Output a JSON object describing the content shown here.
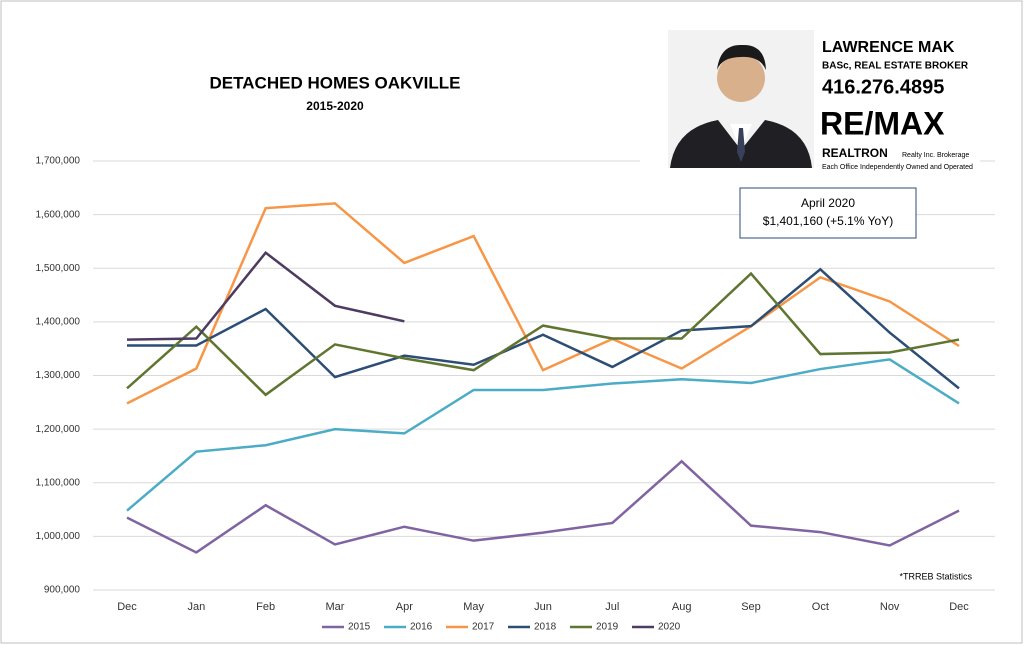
{
  "chart_data": {
    "type": "line",
    "title": "DETACHED HOMES OAKVILLE",
    "subtitle": "2015-2020",
    "categories": [
      "Dec",
      "Jan",
      "Feb",
      "Mar",
      "Apr",
      "May",
      "Jun",
      "Jul",
      "Aug",
      "Sep",
      "Oct",
      "Nov",
      "Dec"
    ],
    "series": [
      {
        "name": "2015",
        "color": "#8064a2",
        "values": [
          1035000,
          970000,
          1058000,
          985000,
          1018000,
          992000,
          1007000,
          1025000,
          1140000,
          1020000,
          1008000,
          983000,
          1048000
        ]
      },
      {
        "name": "2016",
        "color": "#4bacc6",
        "values": [
          1048000,
          1158000,
          1170000,
          1200000,
          1192000,
          1273000,
          1273000,
          1285000,
          1293000,
          1286000,
          1312000,
          1330000,
          1248000
        ]
      },
      {
        "name": "2017",
        "color": "#f79646",
        "values": [
          1248000,
          1313000,
          1612000,
          1621000,
          1510000,
          1560000,
          1310000,
          1368000,
          1313000,
          1392000,
          1483000,
          1438000,
          1355000
        ]
      },
      {
        "name": "2018",
        "color": "#2c4d75",
        "values": [
          1356000,
          1356000,
          1424000,
          1297000,
          1337000,
          1320000,
          1376000,
          1316000,
          1384000,
          1392000,
          1498000,
          1380000,
          1276000
        ]
      },
      {
        "name": "2019",
        "color": "#5f7530",
        "values": [
          1276000,
          1391000,
          1264000,
          1358000,
          1332000,
          1310000,
          1393000,
          1369000,
          1369000,
          1490000,
          1340000,
          1343000,
          1367000
        ]
      },
      {
        "name": "2020",
        "color": "#4d3b62",
        "values": [
          1367000,
          1369000,
          1529000,
          1430000,
          1401000,
          null,
          null,
          null,
          null,
          null,
          null,
          null,
          null
        ]
      }
    ],
    "ylim": [
      900000,
      1700000
    ],
    "yticks": [
      {
        "value": 900000,
        "label": "900,000"
      },
      {
        "value": 1000000,
        "label": "1,000,000"
      },
      {
        "value": 1100000,
        "label": "1,100,000"
      },
      {
        "value": 1200000,
        "label": "1,200,000"
      },
      {
        "value": 1300000,
        "label": "1,300,000"
      },
      {
        "value": 1400000,
        "label": "1,400,000"
      },
      {
        "value": 1500000,
        "label": "1,500,000"
      },
      {
        "value": 1600000,
        "label": "1,600,000"
      },
      {
        "value": 1700000,
        "label": "1,700,000"
      }
    ],
    "grid": true,
    "legend": "bottom",
    "annotation": {
      "line1": "April 2020",
      "line2": "$1,401,160  (+5.1% YoY)"
    },
    "footnote": "*TRREB Statistics"
  },
  "branding": {
    "name": "LAWRENCE MAK",
    "credentials": "BASc, REAL ESTATE BROKER",
    "phone": "416.276.4895",
    "brand": "RE/MAX",
    "office": "REALTRON",
    "office_detail": "Realty Inc. Brokerage",
    "disclaimer": "Each Office Independently Owned and Operated"
  }
}
